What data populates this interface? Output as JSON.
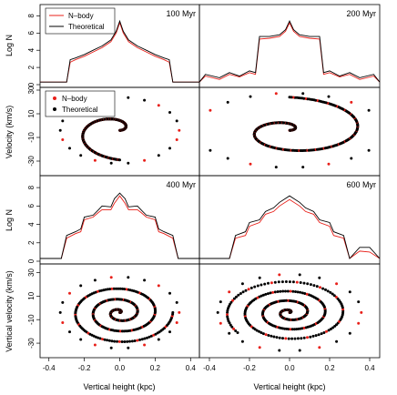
{
  "figure": {
    "x_axis_label": "Vertical height (kpc)",
    "colors": {
      "nbody": "#e8201a",
      "theory": "#000000"
    }
  },
  "chart_data": [
    {
      "type": "line",
      "panel": "top-left",
      "title": "100 Myr",
      "ylabel": "Log N",
      "xlim": [
        -0.45,
        0.45
      ],
      "ylim": [
        0,
        9
      ],
      "yticks": [
        "0",
        "2",
        "4",
        "6",
        "8"
      ],
      "legend": {
        "placement": "top-left",
        "entries": [
          "N–body",
          "Theoretical"
        ]
      },
      "series": [
        {
          "name": "N–body",
          "x": [
            -0.45,
            -0.3,
            -0.28,
            -0.25,
            -0.2,
            -0.15,
            -0.1,
            -0.05,
            -0.02,
            0,
            0.02,
            0.05,
            0.1,
            0.15,
            0.2,
            0.25,
            0.28,
            0.3,
            0.45
          ],
          "y": [
            0.3,
            0.3,
            2.6,
            2.9,
            3.3,
            3.8,
            4.3,
            5.0,
            6.0,
            7.2,
            6.0,
            5.0,
            4.3,
            3.8,
            3.3,
            2.9,
            2.6,
            0.3,
            0.3
          ]
        },
        {
          "name": "Theoretical",
          "x": [
            -0.45,
            -0.3,
            -0.28,
            -0.25,
            -0.2,
            -0.15,
            -0.1,
            -0.05,
            -0.02,
            0,
            0.02,
            0.05,
            0.1,
            0.15,
            0.2,
            0.25,
            0.28,
            0.3,
            0.45
          ],
          "y": [
            0.3,
            0.3,
            2.9,
            3.1,
            3.5,
            4.0,
            4.5,
            5.2,
            6.2,
            7.4,
            6.2,
            5.2,
            4.5,
            4.0,
            3.5,
            3.1,
            2.9,
            0.3,
            0.3
          ]
        }
      ]
    },
    {
      "type": "line",
      "panel": "top-right",
      "title": "200 Myr",
      "ylabel": "",
      "xlim": [
        -0.45,
        0.45
      ],
      "ylim": [
        0,
        9
      ],
      "series": [
        {
          "name": "N–body",
          "x": [
            -0.45,
            -0.42,
            -0.35,
            -0.3,
            -0.25,
            -0.2,
            -0.17,
            -0.15,
            -0.1,
            -0.05,
            -0.02,
            0,
            0.02,
            0.05,
            0.1,
            0.15,
            0.17,
            0.2,
            0.25,
            0.3,
            0.35,
            0.42,
            0.45
          ],
          "y": [
            0.3,
            1.0,
            0.6,
            1.2,
            0.9,
            1.4,
            1.2,
            5.3,
            5.4,
            5.6,
            6.2,
            7.2,
            6.2,
            5.6,
            5.4,
            5.3,
            1.2,
            1.4,
            0.9,
            1.2,
            0.6,
            1.0,
            0.3
          ]
        },
        {
          "name": "Theoretical",
          "x": [
            -0.45,
            -0.42,
            -0.35,
            -0.3,
            -0.25,
            -0.2,
            -0.17,
            -0.15,
            -0.1,
            -0.05,
            -0.02,
            0,
            0.02,
            0.05,
            0.1,
            0.15,
            0.17,
            0.2,
            0.25,
            0.3,
            0.35,
            0.42,
            0.45
          ],
          "y": [
            0.3,
            1.2,
            0.8,
            1.4,
            1.0,
            1.6,
            1.4,
            5.6,
            5.6,
            5.8,
            6.4,
            7.4,
            6.4,
            5.8,
            5.6,
            5.6,
            1.4,
            1.6,
            1.0,
            1.4,
            0.8,
            1.2,
            0.3
          ]
        }
      ]
    },
    {
      "type": "scatter",
      "panel": "second-left",
      "title": "",
      "ylabel": "Velocity (km/s)",
      "xlim": [
        -0.45,
        0.45
      ],
      "ylim": [
        -40,
        30
      ],
      "yticks": [
        "-30",
        "-10",
        "10",
        "30"
      ],
      "legend": {
        "placement": "top-left",
        "entries": [
          "N–body",
          "Theoretical"
        ]
      },
      "spiral": {
        "turns": 0.75,
        "r_max": 0.3,
        "vy_max": 25
      }
    },
    {
      "type": "scatter",
      "panel": "second-right",
      "title": "",
      "ylabel": "",
      "xlim": [
        -0.45,
        0.45
      ],
      "ylim": [
        -40,
        30
      ],
      "spiral": {
        "turns": 1.25,
        "r_max": 0.42,
        "vy_max": 28
      }
    },
    {
      "type": "line",
      "panel": "third-left",
      "title": "400 Myr",
      "ylabel": "Log N",
      "xlim": [
        -0.45,
        0.45
      ],
      "ylim": [
        0,
        9
      ],
      "yticks": [
        "0",
        "2",
        "4",
        "6",
        "8"
      ],
      "series": [
        {
          "name": "N–body",
          "x": [
            -0.45,
            -0.33,
            -0.3,
            -0.25,
            -0.22,
            -0.2,
            -0.15,
            -0.12,
            -0.1,
            -0.05,
            -0.03,
            0,
            0.03,
            0.05,
            0.1,
            0.12,
            0.15,
            0.2,
            0.22,
            0.25,
            0.3,
            0.33,
            0.45
          ],
          "y": [
            0.3,
            0.3,
            2.5,
            3.0,
            3.2,
            4.5,
            4.8,
            5.3,
            5.6,
            5.6,
            6.3,
            7.1,
            6.3,
            5.6,
            5.6,
            5.3,
            4.8,
            4.5,
            3.2,
            3.0,
            2.5,
            0.3,
            0.3
          ]
        },
        {
          "name": "Theoretical",
          "x": [
            -0.45,
            -0.33,
            -0.3,
            -0.25,
            -0.22,
            -0.2,
            -0.15,
            -0.12,
            -0.1,
            -0.05,
            -0.03,
            0,
            0.03,
            0.05,
            0.1,
            0.12,
            0.15,
            0.2,
            0.22,
            0.25,
            0.3,
            0.33,
            0.45
          ],
          "y": [
            0.3,
            0.3,
            2.8,
            3.2,
            3.5,
            4.8,
            5.0,
            5.6,
            6.0,
            5.9,
            6.8,
            7.4,
            6.8,
            5.9,
            6.0,
            5.6,
            5.0,
            4.8,
            3.5,
            3.2,
            2.8,
            0.3,
            0.3
          ]
        }
      ]
    },
    {
      "type": "line",
      "panel": "third-right",
      "title": "600 Myr",
      "ylabel": "",
      "xlim": [
        -0.45,
        0.45
      ],
      "ylim": [
        0,
        9
      ],
      "series": [
        {
          "name": "N–body",
          "x": [
            -0.45,
            -0.3,
            -0.27,
            -0.22,
            -0.2,
            -0.15,
            -0.12,
            -0.08,
            -0.05,
            0,
            0.05,
            0.08,
            0.12,
            0.15,
            0.2,
            0.22,
            0.27,
            0.3,
            0.35,
            0.4,
            0.45
          ],
          "y": [
            0.3,
            0.3,
            2.5,
            2.8,
            3.8,
            4.2,
            5.1,
            5.4,
            6.0,
            6.7,
            6.0,
            5.4,
            5.1,
            4.2,
            3.8,
            2.8,
            2.5,
            0.3,
            1.1,
            1.0,
            0.3
          ]
        },
        {
          "name": "Theoretical",
          "x": [
            -0.45,
            -0.3,
            -0.27,
            -0.22,
            -0.2,
            -0.15,
            -0.12,
            -0.08,
            -0.05,
            0,
            0.05,
            0.08,
            0.12,
            0.15,
            0.2,
            0.22,
            0.27,
            0.3,
            0.35,
            0.4,
            0.45
          ],
          "y": [
            0.3,
            0.3,
            2.8,
            3.2,
            4.2,
            4.5,
            5.4,
            5.8,
            6.4,
            7.1,
            6.4,
            5.8,
            5.4,
            4.5,
            4.2,
            3.2,
            2.8,
            0.3,
            1.5,
            1.5,
            0.3
          ]
        }
      ]
    },
    {
      "type": "scatter",
      "panel": "bottom-left",
      "title": "",
      "ylabel": "Vertical velocity (km/s)",
      "xlabel": "Vertical height (kpc)",
      "xlim": [
        -0.45,
        0.45
      ],
      "ylim": [
        -40,
        35
      ],
      "yticks": [
        "-30",
        "-10",
        "10",
        "30"
      ],
      "xticks": [
        "-0.4",
        "-0.2",
        "0.0",
        "0.2",
        "0.4"
      ],
      "spiral": {
        "turns": 3.0,
        "r_max": 0.3,
        "vy_max": 27
      }
    },
    {
      "type": "scatter",
      "panel": "bottom-right",
      "title": "",
      "ylabel": "",
      "xlabel": "Vertical height (kpc)",
      "xlim": [
        -0.45,
        0.45
      ],
      "ylim": [
        -40,
        35
      ],
      "xticks": [
        "-0.4",
        "-0.2",
        "0.0",
        "0.2",
        "0.4"
      ],
      "spiral": {
        "turns": 3.6,
        "r_max": 0.32,
        "vy_max": 29
      }
    }
  ]
}
